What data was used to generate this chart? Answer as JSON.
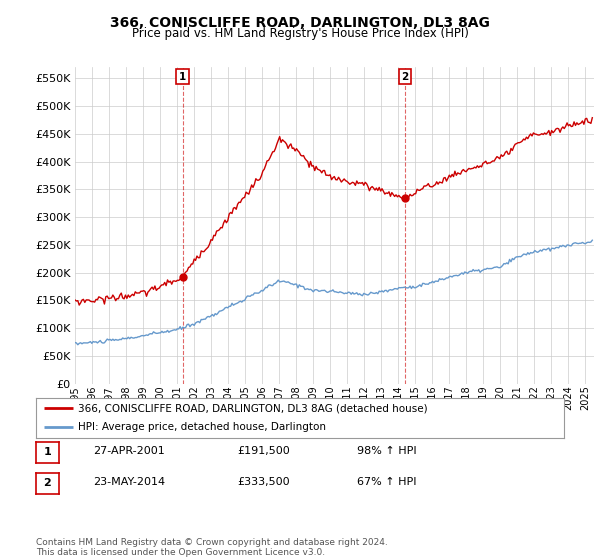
{
  "title": "366, CONISCLIFFE ROAD, DARLINGTON, DL3 8AG",
  "subtitle": "Price paid vs. HM Land Registry's House Price Index (HPI)",
  "ylabel_vals": [
    "£0",
    "£50K",
    "£100K",
    "£150K",
    "£200K",
    "£250K",
    "£300K",
    "£350K",
    "£400K",
    "£450K",
    "£500K",
    "£550K"
  ],
  "yticks": [
    0,
    50000,
    100000,
    150000,
    200000,
    250000,
    300000,
    350000,
    400000,
    450000,
    500000,
    550000
  ],
  "ylim": [
    0,
    570000
  ],
  "xlim_start": 1995.0,
  "xlim_end": 2025.5,
  "xticks": [
    1995,
    1996,
    1997,
    1998,
    1999,
    2000,
    2001,
    2002,
    2003,
    2004,
    2005,
    2006,
    2007,
    2008,
    2009,
    2010,
    2011,
    2012,
    2013,
    2014,
    2015,
    2016,
    2017,
    2018,
    2019,
    2020,
    2021,
    2022,
    2023,
    2024,
    2025
  ],
  "sale1_x": 2001.32,
  "sale1_y": 191500,
  "sale1_label": "1",
  "sale2_x": 2014.39,
  "sale2_y": 333500,
  "sale2_label": "2",
  "vline1_x": 2001.32,
  "vline2_x": 2014.39,
  "legend_line1": "366, CONISCLIFFE ROAD, DARLINGTON, DL3 8AG (detached house)",
  "legend_line2": "HPI: Average price, detached house, Darlington",
  "table_row1": [
    "1",
    "27-APR-2001",
    "£191,500",
    "98% ↑ HPI"
  ],
  "table_row2": [
    "2",
    "23-MAY-2014",
    "£333,500",
    "67% ↑ HPI"
  ],
  "footer": "Contains HM Land Registry data © Crown copyright and database right 2024.\nThis data is licensed under the Open Government Licence v3.0.",
  "red_color": "#cc0000",
  "blue_color": "#6699cc",
  "bg_color": "#ffffff",
  "grid_color": "#cccccc",
  "hpi_anchors_x": [
    1995,
    1996,
    1997,
    1998,
    1999,
    2000,
    2001,
    2002,
    2003,
    2004,
    2005,
    2006,
    2007,
    2008,
    2009,
    2010,
    2011,
    2012,
    2013,
    2014,
    2015,
    2016,
    2017,
    2018,
    2019,
    2020,
    2021,
    2022,
    2023,
    2024,
    2025.3
  ],
  "hpi_anchors_y": [
    72000,
    74000,
    77000,
    81000,
    86000,
    92000,
    97000,
    108000,
    122000,
    138000,
    152000,
    168000,
    185000,
    178000,
    168000,
    166000,
    163000,
    161000,
    165000,
    172000,
    175000,
    182000,
    192000,
    200000,
    205000,
    210000,
    228000,
    238000,
    242000,
    250000,
    255000
  ],
  "prop_anchors_x": [
    1995,
    1996,
    1997,
    1998,
    1999,
    2000,
    2001.32,
    2002,
    2003,
    2004,
    2005,
    2006,
    2007,
    2008,
    2009,
    2010,
    2011,
    2012,
    2013,
    2014.39,
    2015,
    2016,
    2017,
    2018,
    2019,
    2020,
    2021,
    2022,
    2023,
    2024,
    2025.3
  ],
  "prop_anchors_y": [
    148000,
    150000,
    154000,
    158000,
    163000,
    175000,
    191500,
    220000,
    258000,
    300000,
    338000,
    378000,
    440000,
    420000,
    390000,
    372000,
    365000,
    358000,
    348000,
    333500,
    345000,
    358000,
    372000,
    385000,
    395000,
    405000,
    430000,
    450000,
    452000,
    465000,
    475000
  ]
}
